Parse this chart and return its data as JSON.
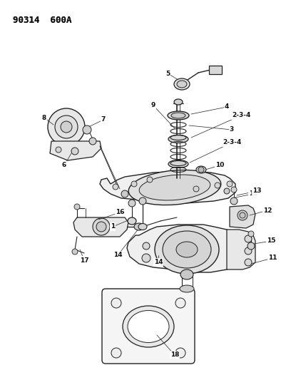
{
  "title": "90314  600A",
  "bg_color": "#ffffff",
  "fg_color": "#111111",
  "fig_width": 4.02,
  "fig_height": 5.33,
  "dpi": 100,
  "line_color": "#222222",
  "label_color": "#111111"
}
